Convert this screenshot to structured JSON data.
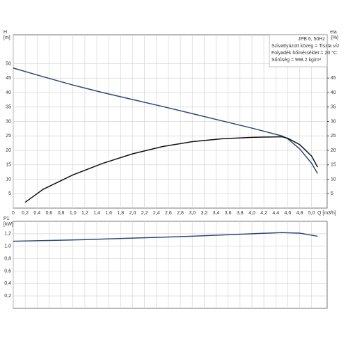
{
  "chart_data": [
    {
      "type": "line",
      "annotations": [
        "JPB 6, 50Hz",
        "Szivattyúzott közeg = Tiszta víz",
        "Folyadék hőmérséklet = 20 °C",
        "Sűrűség = 998.2 kg/m³"
      ],
      "ylabel": [
        "H",
        "[m]"
      ],
      "y2label": [
        "eta",
        "[%]"
      ],
      "xlabel": "Q [m3/h]",
      "xlim": [
        0,
        5.26
      ],
      "ylim": [
        0,
        60
      ],
      "y2lim": [
        0,
        60
      ],
      "grid": true,
      "xticks": [
        0,
        {
          "value": 0.2,
          "label": "0,2"
        },
        {
          "value": 0.4,
          "label": "0,4"
        },
        {
          "value": 0.6,
          "label": "0,6"
        },
        {
          "value": 0.8,
          "label": "0,8"
        },
        {
          "value": 1.0,
          "label": "1,0"
        },
        {
          "value": 1.2,
          "label": "1,2"
        },
        {
          "value": 1.4,
          "label": "1,4"
        },
        {
          "value": 1.6,
          "label": "1,6"
        },
        {
          "value": 1.8,
          "label": "1,8"
        },
        {
          "value": 2.0,
          "label": "2,0"
        },
        {
          "value": 2.2,
          "label": "2,2"
        },
        {
          "value": 2.4,
          "label": "2,4"
        },
        {
          "value": 2.6,
          "label": "2,6"
        },
        {
          "value": 2.8,
          "label": "2,8"
        },
        {
          "value": 3.0,
          "label": "3,0"
        },
        {
          "value": 3.2,
          "label": "3,2"
        },
        {
          "value": 3.4,
          "label": "3,4"
        },
        {
          "value": 3.6,
          "label": "3,6"
        },
        {
          "value": 3.8,
          "label": "3,8"
        },
        {
          "value": 4.0,
          "label": "4,0"
        },
        {
          "value": 4.2,
          "label": "4,2"
        },
        {
          "value": 4.4,
          "label": "4,4"
        },
        {
          "value": 4.6,
          "label": "4,6"
        },
        {
          "value": 4.8,
          "label": "4,8"
        },
        {
          "value": 5.0,
          "label": "5,0"
        }
      ],
      "yticks": [
        5,
        10,
        15,
        20,
        25,
        30,
        35,
        40,
        45,
        50
      ],
      "y2ticks": [
        5,
        10,
        15,
        20,
        25,
        30,
        35,
        40,
        45
      ],
      "series": [
        {
          "color": "#2a4a78",
          "x": [
            0,
            0.5,
            1.0,
            1.5,
            2.0,
            2.5,
            3.0,
            3.5,
            4.0,
            4.5,
            4.6,
            4.8,
            5.0,
            5.1
          ],
          "values": [
            48.5,
            45.5,
            42.6,
            40,
            37.6,
            35.2,
            32.7,
            30.2,
            27.7,
            25,
            24,
            20.5,
            15.5,
            12
          ]
        },
        {
          "color": "#111111",
          "axis": "y2",
          "x": [
            0.2,
            0.5,
            1.0,
            1.5,
            2.0,
            2.5,
            3.0,
            3.5,
            4.0,
            4.5,
            4.6,
            4.8,
            5.0,
            5.1
          ],
          "values": [
            2,
            6.5,
            11.5,
            15.5,
            18.8,
            21.3,
            23,
            24,
            24.5,
            24.7,
            24.2,
            22,
            18,
            14.2
          ]
        }
      ]
    },
    {
      "type": "line",
      "ylabel": [
        "P1",
        "[kW]"
      ],
      "xlim": [
        0,
        5.26
      ],
      "ylim": [
        0,
        1.4
      ],
      "grid": true,
      "xticks": [
        0,
        0.2,
        0.4,
        0.6,
        0.8,
        1.0,
        1.2,
        1.4,
        1.6,
        1.8,
        2.0,
        2.2,
        2.4,
        2.6,
        2.8,
        3.0,
        3.2,
        3.4,
        3.6,
        3.8,
        4.0,
        4.2,
        4.4,
        4.6,
        4.8,
        5.0
      ],
      "yticks": [
        {
          "value": 0.2,
          "label": "0,2"
        },
        {
          "value": 0.4,
          "label": "0,4"
        },
        {
          "value": 0.6,
          "label": "0,6"
        },
        {
          "value": 0.8,
          "label": "0,8"
        },
        {
          "value": 1.0,
          "label": "1,0"
        },
        {
          "value": 1.2,
          "label": "1,2"
        }
      ],
      "series": [
        {
          "color": "#2a4a78",
          "x": [
            0,
            1.0,
            2.0,
            3.0,
            4.0,
            4.5,
            4.8,
            5.1
          ],
          "values": [
            1.08,
            1.1,
            1.13,
            1.16,
            1.2,
            1.22,
            1.21,
            1.16
          ]
        }
      ]
    }
  ]
}
